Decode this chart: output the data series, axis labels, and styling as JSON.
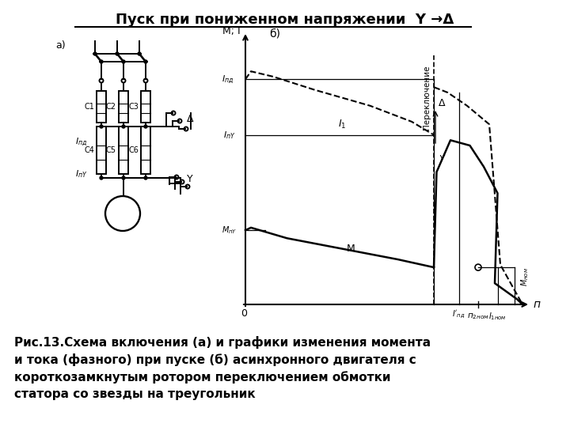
{
  "title": "Пуск при пониженном напряжении  Y →Δ",
  "caption_line1": "Рис.13.Схема включения (а) и графики изменения момента",
  "caption_line2": "и тока (фазного) при пуске (б) асинхронного двигателя с",
  "caption_line3": "короткозамкнутым ротором переключением обмотки",
  "caption_line4": "статора со звезды на треугольник",
  "bg_color": "#ffffff"
}
